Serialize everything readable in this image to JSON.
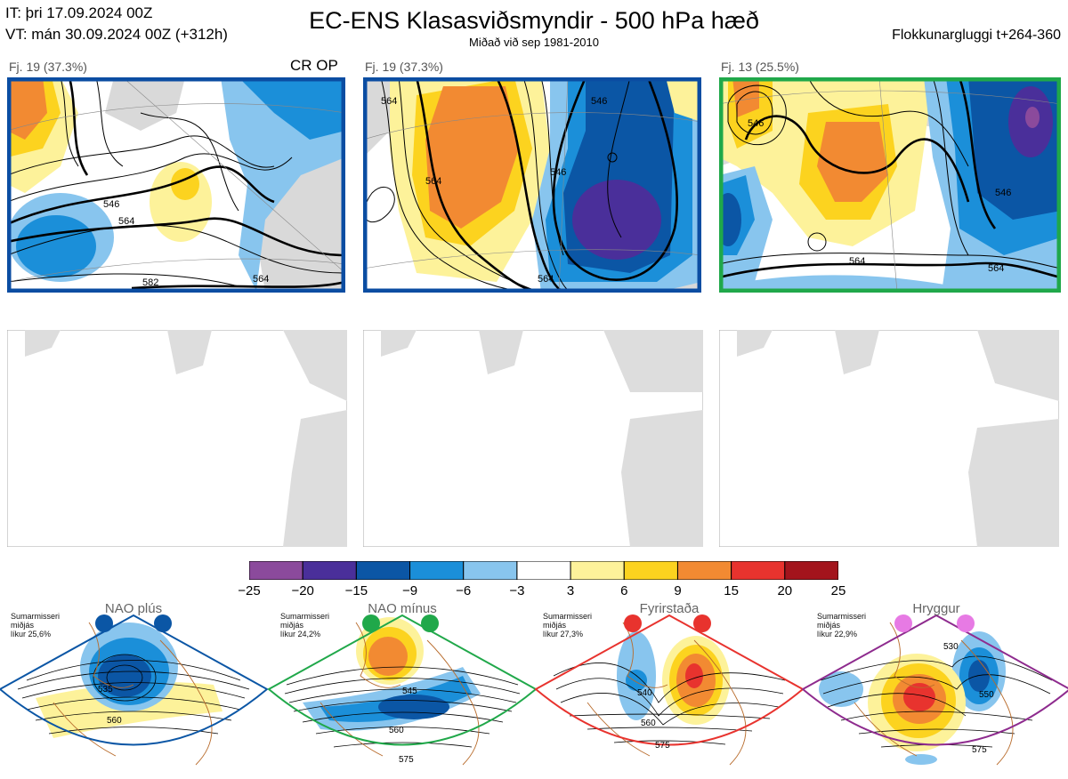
{
  "header": {
    "it": "IT: þri 17.09.2024 00Z",
    "vt": "VT: mán 30.09.2024 00Z  (+312h)",
    "title": "EC-ENS Klasasviðsmyndir - 500 hPa hæð",
    "subtitle": "Miðað við sep 1981-2010",
    "cluster_window": "Flokkunargluggi t+264-360"
  },
  "panels": [
    {
      "label": "Fj. 19 (37.3%)",
      "badge": "CR OP",
      "border": "#0b4da2",
      "contours": [
        "546",
        "564",
        "582",
        "564"
      ]
    },
    {
      "label": "Fj. 19 (37.3%)",
      "badge": "",
      "border": "#0b4da2",
      "contours": [
        "564",
        "564",
        "546",
        "546",
        "564"
      ]
    },
    {
      "label": "Fj. 13 (25.5%)",
      "badge": "",
      "border": "#20a84a",
      "contours": [
        "546",
        "564",
        "546",
        "564"
      ]
    }
  ],
  "colorbar": {
    "ticks": [
      "−25",
      "−20",
      "−15",
      "−9",
      "−6",
      "−3",
      "3",
      "6",
      "9",
      "15",
      "20",
      "25"
    ],
    "colors": [
      "#8b4a9c",
      "#4a2f9a",
      "#0b56a5",
      "#1b8fd9",
      "#88c5ee",
      "#ffffff",
      "#fdf29a",
      "#fcd31f",
      "#f28a32",
      "#e8332e",
      "#a3141c"
    ]
  },
  "regimes": [
    {
      "name": "NAO plús",
      "season": "Sumarmisseri",
      "dist": "miðjás",
      "prob": "líkur 25,6%",
      "color": "#0b56a5",
      "contours": [
        "535",
        "560"
      ]
    },
    {
      "name": "NAO mínus",
      "season": "Sumarmisseri",
      "dist": "miðjás",
      "prob": "líkur 24,2%",
      "color": "#20a84a",
      "contours": [
        "545",
        "560",
        "575"
      ]
    },
    {
      "name": "Fyrirstaða",
      "season": "Sumarmisseri",
      "dist": "miðjás",
      "prob": "líkur 27,3%",
      "color": "#e8332e",
      "contours": [
        "540",
        "560",
        "575"
      ]
    },
    {
      "name": "Hryggur",
      "season": "Sumarmisseri",
      "dist": "miðjás",
      "prob": "líkur 22,9%",
      "color": "#e77ae4",
      "contours": [
        "530",
        "550",
        "575"
      ]
    }
  ]
}
